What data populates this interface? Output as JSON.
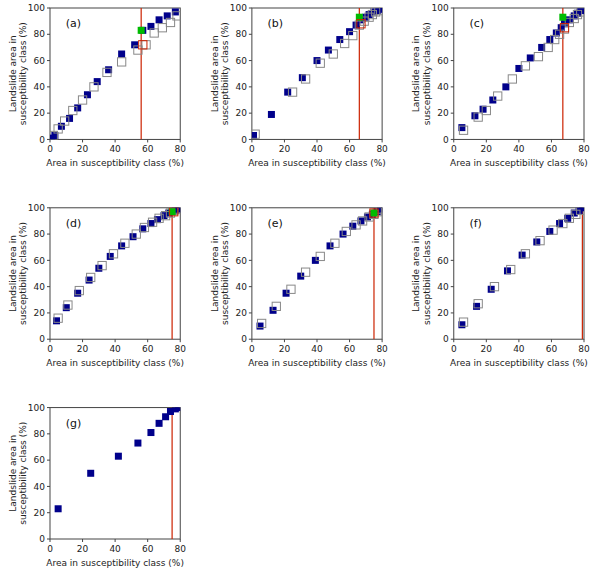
{
  "chart_data": [
    {
      "type": "scatter",
      "title": "(a)",
      "xlabel": "Area in susceptibility class (%)",
      "ylabel": "Landslide area in\nsusceptibility class (%)",
      "xlim": [
        0,
        80
      ],
      "ylim": [
        0,
        100
      ],
      "xticks": [
        0,
        20,
        40,
        60,
        80
      ],
      "yticks": [
        0,
        20,
        40,
        60,
        80,
        100
      ],
      "grid": false,
      "series": [
        {
          "type": "vline",
          "color": "#cc2200",
          "x": [
            56
          ]
        },
        {
          "marker": "square",
          "color": "#00008B",
          "x": [
            1,
            3,
            7,
            12,
            17,
            23,
            29,
            36,
            44,
            52,
            57,
            62,
            67,
            72,
            77
          ],
          "values": [
            1,
            3,
            10,
            16,
            24,
            34,
            44,
            53,
            65,
            72,
            83,
            86,
            91,
            94,
            97
          ]
        },
        {
          "marker": "square-open",
          "color": "#888888",
          "x": [
            2,
            5,
            9,
            14,
            20,
            27,
            35,
            44,
            54,
            59,
            64,
            69,
            74,
            78
          ],
          "values": [
            3,
            8,
            14,
            22,
            30,
            40,
            51,
            59,
            68,
            72,
            81,
            85,
            89,
            94
          ]
        },
        {
          "marker": "square",
          "color": "#00bb00",
          "x": [
            56
          ],
          "values": [
            83
          ]
        },
        {
          "marker": "square-open",
          "color": "#cc2200",
          "x": [
            57
          ],
          "values": [
            72
          ]
        }
      ]
    },
    {
      "type": "scatter",
      "title": "(b)",
      "xlabel": "Area in susceptibility class (%)",
      "ylabel": "Landslide area in\nsusceptibility class (%)",
      "xlim": [
        0,
        80
      ],
      "ylim": [
        0,
        100
      ],
      "xticks": [
        0,
        20,
        40,
        60,
        80
      ],
      "yticks": [
        0,
        20,
        40,
        60,
        80,
        100
      ],
      "grid": false,
      "series": [
        {
          "type": "vline",
          "color": "#cc2200",
          "x": [
            66
          ]
        },
        {
          "marker": "square",
          "color": "#00008B",
          "x": [
            1,
            12,
            22,
            31,
            40,
            47,
            54,
            60,
            64,
            67,
            70,
            72,
            75,
            77,
            79
          ],
          "values": [
            3,
            19,
            36,
            47,
            60,
            68,
            76,
            82,
            87,
            91,
            93,
            95,
            97,
            98,
            99
          ]
        },
        {
          "marker": "square-open",
          "color": "#888888",
          "x": [
            2,
            25,
            33,
            42,
            50,
            57,
            62,
            66,
            69,
            72,
            74,
            76,
            78
          ],
          "values": [
            4,
            36,
            46,
            58,
            65,
            73,
            79,
            87,
            90,
            93,
            95,
            97,
            98
          ]
        },
        {
          "marker": "square",
          "color": "#00bb00",
          "x": [
            66
          ],
          "values": [
            93
          ]
        },
        {
          "marker": "square-open",
          "color": "#cc2200",
          "x": [
            67
          ],
          "values": [
            88
          ]
        }
      ]
    },
    {
      "type": "scatter",
      "title": "(c)",
      "xlabel": "Area in susceptibility class (%)",
      "ylabel": "Landslide area in\nsusceptibility class (%)",
      "xlim": [
        0,
        80
      ],
      "ylim": [
        0,
        100
      ],
      "xticks": [
        0,
        20,
        40,
        60,
        80
      ],
      "yticks": [
        0,
        20,
        40,
        60,
        80,
        100
      ],
      "grid": false,
      "series": [
        {
          "type": "vline",
          "color": "#cc2200",
          "x": [
            67
          ]
        },
        {
          "marker": "square",
          "color": "#00008B",
          "x": [
            5,
            13,
            18,
            24,
            32,
            40,
            47,
            54,
            59,
            63,
            66,
            68,
            71,
            74,
            76,
            78
          ],
          "values": [
            9,
            18,
            23,
            30,
            40,
            54,
            62,
            70,
            76,
            81,
            85,
            88,
            91,
            94,
            96,
            98
          ]
        },
        {
          "marker": "square-open",
          "color": "#888888",
          "x": [
            6,
            15,
            20,
            27,
            36,
            44,
            52,
            58,
            62,
            65,
            68,
            71,
            74,
            76,
            78
          ],
          "values": [
            7,
            17,
            22,
            33,
            46,
            56,
            63,
            70,
            76,
            80,
            84,
            89,
            92,
            95,
            97
          ]
        },
        {
          "marker": "square",
          "color": "#00bb00",
          "x": [
            67
          ],
          "values": [
            93
          ]
        },
        {
          "marker": "square-open",
          "color": "#cc2200",
          "x": [
            68
          ],
          "values": [
            85
          ]
        }
      ]
    },
    {
      "type": "scatter",
      "title": "(d)",
      "xlabel": "Area in susceptibility class (%)",
      "ylabel": "Landslide area in\nsusceptibility class (%)",
      "xlim": [
        0,
        80
      ],
      "ylim": [
        0,
        100
      ],
      "xticks": [
        0,
        20,
        40,
        60,
        80
      ],
      "yticks": [
        0,
        20,
        40,
        60,
        80,
        100
      ],
      "grid": false,
      "series": [
        {
          "type": "vline",
          "color": "#cc2200",
          "x": [
            75
          ]
        },
        {
          "marker": "square",
          "color": "#00008B",
          "x": [
            4,
            10,
            17,
            24,
            30,
            37,
            44,
            51,
            57,
            62,
            66,
            70,
            73,
            75,
            77,
            79
          ],
          "values": [
            14,
            24,
            35,
            45,
            54,
            63,
            71,
            78,
            84,
            88,
            91,
            94,
            96,
            97,
            98,
            99
          ]
        },
        {
          "marker": "square-open",
          "color": "#888888",
          "x": [
            5,
            11,
            18,
            25,
            32,
            39,
            46,
            53,
            58,
            63,
            67,
            71,
            74,
            76,
            78
          ],
          "values": [
            16,
            26,
            37,
            47,
            56,
            65,
            73,
            80,
            85,
            89,
            92,
            94,
            96,
            98,
            99
          ]
        },
        {
          "marker": "square",
          "color": "#00bb00",
          "x": [
            75
          ],
          "values": [
            97
          ]
        },
        {
          "marker": "square-open",
          "color": "#cc2200",
          "x": [
            76
          ],
          "values": [
            97
          ]
        }
      ]
    },
    {
      "type": "scatter",
      "title": "(e)",
      "xlabel": "Area in susceptibility class (%)",
      "ylabel": "Landslide area in\nsusceptibility class (%)",
      "xlim": [
        0,
        80
      ],
      "ylim": [
        0,
        100
      ],
      "xticks": [
        0,
        20,
        40,
        60,
        80
      ],
      "yticks": [
        0,
        20,
        40,
        60,
        80,
        100
      ],
      "grid": false,
      "series": [
        {
          "type": "vline",
          "color": "#cc2200",
          "x": [
            75
          ]
        },
        {
          "marker": "square",
          "color": "#00008B",
          "x": [
            5,
            13,
            21,
            30,
            39,
            48,
            56,
            62,
            67,
            71,
            74,
            77,
            79
          ],
          "values": [
            10,
            22,
            35,
            48,
            60,
            71,
            80,
            86,
            90,
            93,
            95,
            97,
            99
          ]
        },
        {
          "marker": "square-open",
          "color": "#888888",
          "x": [
            6,
            15,
            24,
            33,
            42,
            51,
            58,
            64,
            68,
            72,
            75,
            77,
            79
          ],
          "values": [
            12,
            25,
            38,
            51,
            63,
            73,
            82,
            87,
            90,
            93,
            95,
            97,
            99
          ]
        },
        {
          "marker": "square",
          "color": "#00bb00",
          "x": [
            75
          ],
          "values": [
            96
          ]
        },
        {
          "marker": "square-open",
          "color": "#cc2200",
          "x": [
            75
          ],
          "values": [
            96
          ]
        }
      ]
    },
    {
      "type": "scatter",
      "title": "(f)",
      "xlabel": "Area in susceptibility class (%)",
      "ylabel": "Landslide area in\nsusceptibility class (%)",
      "xlim": [
        0,
        80
      ],
      "ylim": [
        0,
        100
      ],
      "xticks": [
        0,
        20,
        40,
        60,
        80
      ],
      "yticks": [
        0,
        20,
        40,
        60,
        80,
        100
      ],
      "grid": false,
      "series": [
        {
          "type": "vline",
          "color": "#cc2200",
          "x": [
            79
          ]
        },
        {
          "marker": "square",
          "color": "#00008B",
          "x": [
            5,
            14,
            23,
            33,
            42,
            51,
            59,
            65,
            70,
            74,
            77,
            79
          ],
          "values": [
            11,
            25,
            38,
            52,
            64,
            74,
            82,
            88,
            92,
            96,
            98,
            100
          ]
        },
        {
          "marker": "square-open",
          "color": "#888888",
          "x": [
            6,
            15,
            25,
            35,
            44,
            53,
            61,
            67,
            71,
            75,
            78
          ],
          "values": [
            13,
            27,
            40,
            53,
            65,
            75,
            83,
            88,
            92,
            95,
            98
          ]
        }
      ]
    },
    {
      "type": "scatter",
      "title": "(g)",
      "xlabel": "Area in susceptibility class (%)",
      "ylabel": "Landslide area in\nsusceptibility class (%)",
      "xlim": [
        0,
        80
      ],
      "ylim": [
        0,
        100
      ],
      "xticks": [
        0,
        20,
        40,
        60,
        80
      ],
      "yticks": [
        0,
        20,
        40,
        60,
        80,
        100
      ],
      "grid": false,
      "series": [
        {
          "type": "vline",
          "color": "#cc2200",
          "x": [
            75
          ]
        },
        {
          "marker": "square",
          "color": "#00008B",
          "x": [
            5,
            25,
            42,
            54,
            62,
            67,
            71,
            74,
            77,
            79
          ],
          "values": [
            23,
            50,
            63,
            73,
            81,
            88,
            93,
            97,
            99,
            100
          ]
        }
      ]
    }
  ]
}
